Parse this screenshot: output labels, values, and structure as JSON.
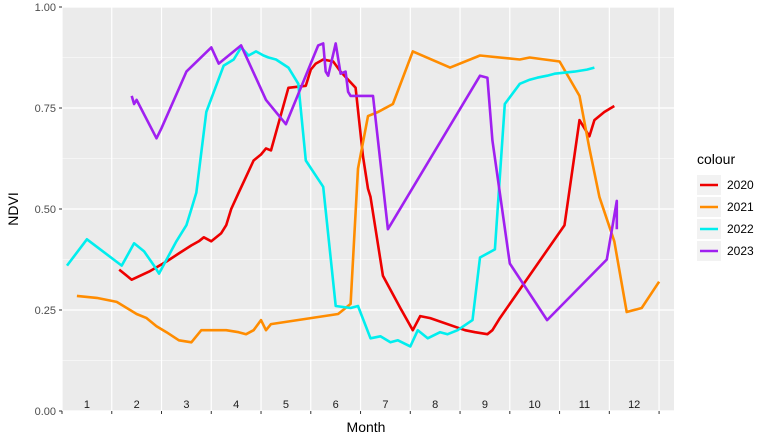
{
  "chart_data": {
    "type": "line",
    "title": "",
    "xlabel": "Month",
    "ylabel": "NDVI",
    "xlim": [
      0,
      12.3
    ],
    "ylim": [
      0,
      1
    ],
    "y_ticks": [
      0,
      0.25,
      0.5,
      0.75,
      1
    ],
    "y_tick_labels": [
      "0.00",
      "0.25",
      "0.50",
      "0.75",
      "1.00"
    ],
    "x_tick_labels": [
      "1",
      "2",
      "3",
      "4",
      "5",
      "6",
      "7",
      "8",
      "9",
      "10",
      "11",
      "12"
    ],
    "grid": true,
    "background": "#EBEBEB",
    "legend": {
      "title": "colour",
      "position": "right"
    },
    "series": [
      {
        "name": "2020",
        "color": "#EE0000",
        "x": [
          1.15,
          1.4,
          1.75,
          2.1,
          2.35,
          2.6,
          2.75,
          2.85,
          3.0,
          3.2,
          3.3,
          3.4,
          3.55,
          3.7,
          3.85,
          4.0,
          4.1,
          4.2,
          4.55,
          4.9,
          5.0,
          5.1,
          5.25,
          5.45,
          5.6,
          5.9,
          6.05,
          6.15,
          6.2,
          6.45,
          6.8,
          7.05,
          7.2,
          7.4,
          8.1,
          8.3,
          8.55,
          8.65,
          8.8,
          10.1,
          10.4,
          10.6,
          10.7,
          10.9,
          11.1
        ],
        "y": [
          0.35,
          0.325,
          0.345,
          0.37,
          0.39,
          0.41,
          0.42,
          0.43,
          0.42,
          0.44,
          0.46,
          0.5,
          0.54,
          0.58,
          0.62,
          0.635,
          0.65,
          0.645,
          0.8,
          0.805,
          0.845,
          0.86,
          0.87,
          0.865,
          0.84,
          0.8,
          0.63,
          0.55,
          0.53,
          0.335,
          0.255,
          0.2,
          0.235,
          0.23,
          0.2,
          0.195,
          0.19,
          0.2,
          0.23,
          0.46,
          0.72,
          0.68,
          0.72,
          0.74,
          0.755
        ]
      },
      {
        "name": "2021",
        "color": "#FF8C00",
        "x": [
          0.3,
          0.7,
          1.1,
          1.5,
          1.7,
          1.9,
          2.1,
          2.35,
          2.6,
          2.8,
          3.05,
          3.3,
          3.55,
          3.7,
          3.85,
          4.0,
          4.1,
          4.2,
          5.55,
          5.65,
          5.8,
          5.95,
          6.15,
          6.35,
          6.65,
          7.05,
          7.8,
          8.4,
          9.2,
          9.4,
          10.0,
          10.4,
          10.6,
          10.8,
          11.1,
          11.35,
          11.65,
          12.0
        ],
        "y": [
          0.285,
          0.28,
          0.27,
          0.24,
          0.23,
          0.21,
          0.195,
          0.175,
          0.17,
          0.2,
          0.2,
          0.2,
          0.195,
          0.19,
          0.2,
          0.225,
          0.2,
          0.215,
          0.24,
          0.25,
          0.265,
          0.6,
          0.73,
          0.74,
          0.76,
          0.89,
          0.85,
          0.88,
          0.87,
          0.875,
          0.865,
          0.78,
          0.65,
          0.53,
          0.42,
          0.245,
          0.255,
          0.32
        ]
      },
      {
        "name": "2022",
        "color": "#00EEEE",
        "x": [
          0.1,
          0.5,
          1.2,
          1.45,
          1.65,
          1.85,
          1.95,
          2.3,
          2.5,
          2.6,
          2.7,
          2.9,
          3.25,
          3.45,
          3.6,
          3.75,
          3.9,
          4.05,
          4.15,
          4.3,
          4.55,
          4.75,
          4.9,
          5.25,
          5.5,
          5.8,
          5.95,
          6.2,
          6.4,
          6.6,
          6.75,
          7.0,
          7.15,
          7.35,
          7.6,
          7.75,
          7.95,
          8.25,
          8.4,
          8.7,
          8.9,
          9.2,
          9.4,
          9.55,
          9.75,
          9.9,
          10.3,
          10.55,
          10.7
        ],
        "y": [
          0.36,
          0.425,
          0.36,
          0.415,
          0.395,
          0.36,
          0.34,
          0.42,
          0.46,
          0.5,
          0.54,
          0.74,
          0.855,
          0.87,
          0.9,
          0.88,
          0.89,
          0.88,
          0.875,
          0.87,
          0.85,
          0.81,
          0.62,
          0.555,
          0.26,
          0.255,
          0.26,
          0.18,
          0.185,
          0.17,
          0.175,
          0.16,
          0.2,
          0.18,
          0.195,
          0.19,
          0.2,
          0.225,
          0.38,
          0.4,
          0.76,
          0.81,
          0.82,
          0.825,
          0.83,
          0.835,
          0.84,
          0.845,
          0.85
        ]
      },
      {
        "name": "2023",
        "color": "#A020F0",
        "x": [
          1.4,
          1.45,
          1.5,
          1.9,
          2.0,
          2.5,
          3.0,
          3.15,
          3.6,
          4.1,
          4.5,
          5.15,
          5.25,
          5.3,
          5.35,
          5.5,
          5.6,
          5.7,
          5.75,
          5.8,
          6.25,
          6.55,
          8.4,
          8.55,
          8.65,
          9.0,
          9.75,
          10.95,
          11.15,
          11.15
        ],
        "y": [
          0.78,
          0.76,
          0.77,
          0.675,
          0.7,
          0.84,
          0.9,
          0.86,
          0.905,
          0.77,
          0.71,
          0.905,
          0.91,
          0.84,
          0.83,
          0.91,
          0.835,
          0.84,
          0.79,
          0.78,
          0.78,
          0.45,
          0.83,
          0.825,
          0.67,
          0.365,
          0.225,
          0.375,
          0.52,
          0.45
        ]
      }
    ]
  }
}
